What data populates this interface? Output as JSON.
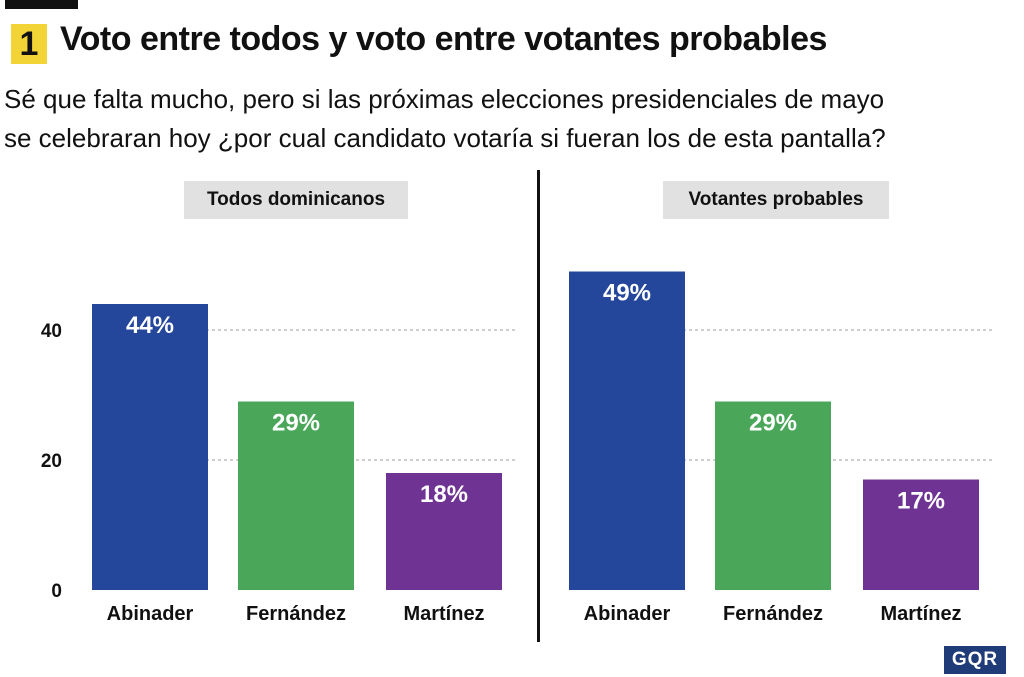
{
  "header": {
    "number": "1",
    "title": "Voto entre todos y voto entre votantes probables",
    "question_line1": "Sé que falta mucho, pero si las próximas elecciones presidenciales de mayo",
    "question_line2": "se celebraran hoy ¿por cual candidato votaría si fueran los de esta pantalla?"
  },
  "logo": "GQR",
  "colors": {
    "accent": "#f3d436",
    "Abinader": "#24479b",
    "Fernández": "#4aa659",
    "Martínez": "#6f3394"
  },
  "chart_data": [
    {
      "type": "bar",
      "title": "Todos dominicanos",
      "categories": [
        "Abinader",
        "Fernández",
        "Martínez"
      ],
      "values": [
        44,
        29,
        18
      ],
      "value_labels": [
        "44%",
        "29%",
        "18%"
      ],
      "yticks": [
        0,
        20,
        40
      ],
      "ylim": [
        0,
        60
      ],
      "grid": true
    },
    {
      "type": "bar",
      "title": "Votantes probables",
      "categories": [
        "Abinader",
        "Fernández",
        "Martínez"
      ],
      "values": [
        49,
        29,
        17
      ],
      "value_labels": [
        "49%",
        "29%",
        "17%"
      ],
      "yticks": [],
      "ylim": [
        0,
        60
      ],
      "grid": true
    }
  ]
}
